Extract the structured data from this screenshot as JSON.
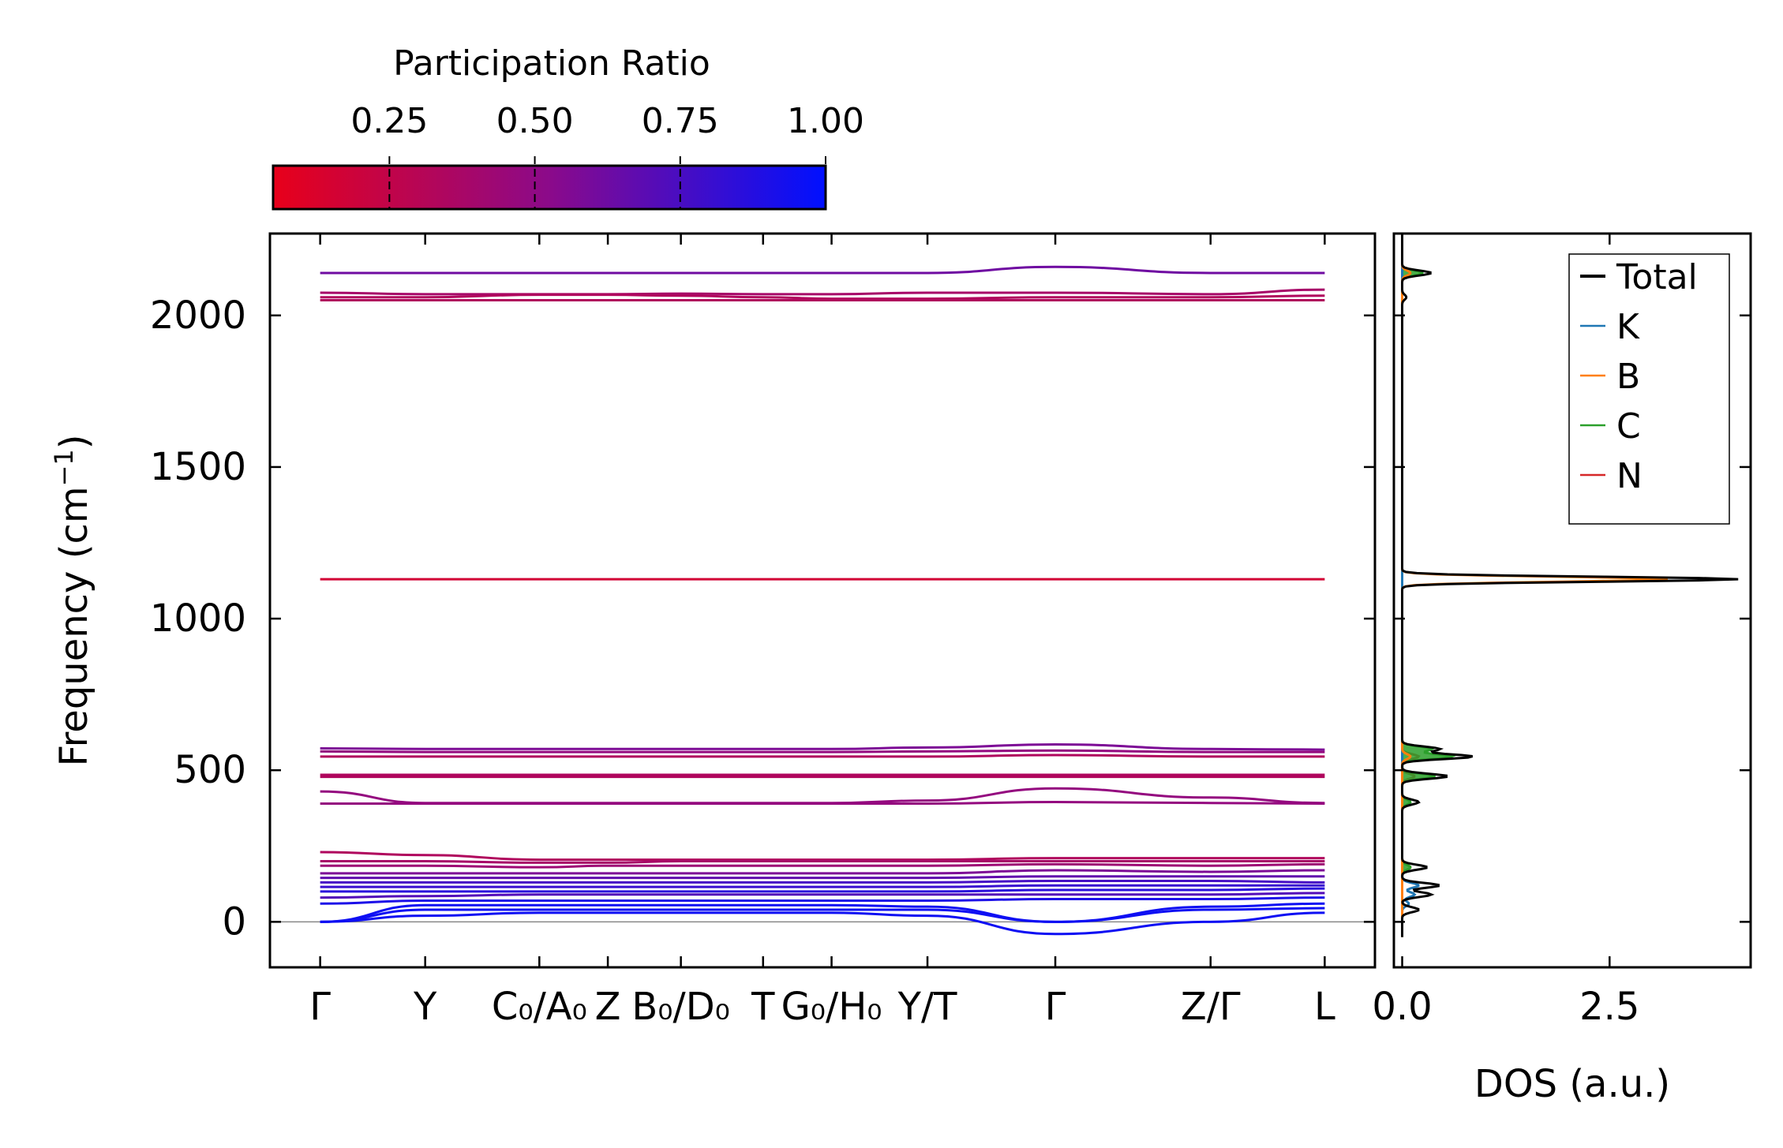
{
  "colors": {
    "cmap_low": "#e8001a",
    "cmap_mid": "#8b0a8a",
    "cmap_high": "#0010ff",
    "total": "#000000",
    "K": "#1f77b4",
    "B": "#ff7f0e",
    "C": "#2ca02c",
    "N": "#d62728"
  },
  "chart_data": [
    {
      "type": "line",
      "name": "phonon-band-structure",
      "ylabel_main": "Frequency (cm",
      "ylabel_sup": "−1",
      "ylabel_end": ")",
      "ylim": [
        -150,
        2270
      ],
      "yticks": [
        {
          "value": 0,
          "label": "0"
        },
        {
          "value": 500,
          "label": "500"
        },
        {
          "value": 1000,
          "label": "1000"
        },
        {
          "value": 1500,
          "label": "1500"
        },
        {
          "value": 2000,
          "label": "2000"
        }
      ],
      "kpath": [
        {
          "x": 0.0,
          "label": "Γ"
        },
        {
          "x": 0.115,
          "label": "Y"
        },
        {
          "x": 0.24,
          "label": "C₀/A₀"
        },
        {
          "x": 0.315,
          "label": "Z"
        },
        {
          "x": 0.395,
          "label": "B₀/D₀"
        },
        {
          "x": 0.485,
          "label": "T"
        },
        {
          "x": 0.56,
          "label": "G₀/H₀"
        },
        {
          "x": 0.665,
          "label": "Y/T"
        },
        {
          "x": 0.805,
          "label": "Γ"
        },
        {
          "x": 0.975,
          "label": "Z/Γ"
        },
        {
          "x": 1.1,
          "label": "L"
        }
      ],
      "xlim": [
        -0.055,
        1.155
      ],
      "high_bands": [
        {
          "values": [
            2140,
            2140,
            2140,
            2140,
            2140,
            2140,
            2140,
            2140,
            2160,
            2140,
            2140
          ],
          "pr": 0.6
        },
        {
          "values": [
            2075,
            2070,
            2070,
            2070,
            2072,
            2070,
            2070,
            2075,
            2075,
            2070,
            2085
          ],
          "pr": 0.35
        },
        {
          "values": [
            2060,
            2060,
            2068,
            2068,
            2065,
            2060,
            2055,
            2055,
            2060,
            2060,
            2065
          ],
          "pr": 0.3
        },
        {
          "values": [
            2050,
            2050,
            2050,
            2050,
            2050,
            2050,
            2050,
            2050,
            2050,
            2050,
            2050
          ],
          "pr": 0.3
        }
      ],
      "mid_bands": [
        {
          "values": [
            1130,
            1130,
            1130,
            1130,
            1130,
            1130,
            1130,
            1130,
            1130,
            1130,
            1130
          ],
          "pr": 0.12
        }
      ],
      "low_bands": [
        {
          "values": [
            572,
            570,
            570,
            570,
            570,
            570,
            570,
            575,
            585,
            570,
            568
          ],
          "pr": 0.55
        },
        {
          "values": [
            562,
            560,
            560,
            560,
            560,
            560,
            560,
            562,
            565,
            560,
            560
          ],
          "pr": 0.45
        },
        {
          "values": [
            545,
            545,
            545,
            545,
            545,
            545,
            545,
            545,
            550,
            545,
            545
          ],
          "pr": 0.3
        },
        {
          "values": [
            485,
            485,
            485,
            485,
            485,
            485,
            485,
            485,
            485,
            485,
            485
          ],
          "pr": 0.3
        },
        {
          "values": [
            478,
            478,
            478,
            478,
            478,
            478,
            478,
            478,
            478,
            478,
            478
          ],
          "pr": 0.3
        },
        {
          "values": [
            430,
            392,
            392,
            392,
            392,
            392,
            392,
            400,
            440,
            410,
            392
          ],
          "pr": 0.45
        },
        {
          "values": [
            390,
            390,
            390,
            390,
            390,
            390,
            390,
            390,
            395,
            392,
            390
          ],
          "pr": 0.45
        }
      ],
      "acoustic_bands": [
        {
          "values": [
            230,
            220,
            205,
            205,
            205,
            205,
            205,
            205,
            210,
            210,
            210
          ],
          "pr": 0.3
        },
        {
          "values": [
            200,
            200,
            195,
            195,
            200,
            200,
            200,
            200,
            200,
            200,
            200
          ],
          "pr": 0.35
        },
        {
          "values": [
            185,
            185,
            180,
            185,
            185,
            185,
            185,
            185,
            190,
            185,
            190
          ],
          "pr": 0.4
        },
        {
          "values": [
            160,
            160,
            160,
            160,
            160,
            160,
            160,
            160,
            170,
            165,
            170
          ],
          "pr": 0.55
        },
        {
          "values": [
            145,
            145,
            145,
            145,
            145,
            145,
            145,
            145,
            150,
            150,
            150
          ],
          "pr": 0.65
        },
        {
          "values": [
            130,
            130,
            130,
            130,
            130,
            130,
            130,
            130,
            135,
            135,
            130
          ],
          "pr": 0.75
        },
        {
          "values": [
            115,
            115,
            115,
            115,
            115,
            115,
            115,
            115,
            120,
            120,
            120
          ],
          "pr": 0.8
        },
        {
          "values": [
            100,
            100,
            100,
            100,
            100,
            100,
            100,
            100,
            105,
            105,
            110
          ],
          "pr": 0.85
        },
        {
          "values": [
            80,
            85,
            90,
            90,
            90,
            90,
            90,
            90,
            90,
            90,
            95
          ],
          "pr": 0.7
        },
        {
          "values": [
            60,
            70,
            70,
            70,
            70,
            70,
            70,
            70,
            75,
            75,
            80
          ],
          "pr": 0.9
        },
        {
          "values": [
            0,
            55,
            55,
            55,
            55,
            55,
            55,
            50,
            0,
            50,
            60
          ],
          "pr": 0.95
        },
        {
          "values": [
            0,
            40,
            40,
            40,
            40,
            40,
            40,
            40,
            0,
            40,
            45
          ],
          "pr": 0.95
        },
        {
          "values": [
            0,
            20,
            30,
            30,
            30,
            30,
            30,
            20,
            -40,
            0,
            30
          ],
          "pr": 0.95
        }
      ],
      "zero_line": 0
    },
    {
      "type": "area",
      "name": "participation-ratio-colorbar",
      "title": "Participation Ratio",
      "range": [
        0.05,
        1.0
      ],
      "ticks": [
        {
          "value": 0.25,
          "label": "0.25"
        },
        {
          "value": 0.5,
          "label": "0.50"
        },
        {
          "value": 0.75,
          "label": "0.75"
        },
        {
          "value": 1.0,
          "label": "1.00"
        }
      ]
    },
    {
      "type": "line",
      "name": "density-of-states",
      "xlabel": "DOS (a.u.)",
      "xlim": [
        -0.1,
        4.2
      ],
      "xticks": [
        {
          "value": 0.0,
          "label": "0.0"
        },
        {
          "value": 2.5,
          "label": "2.5"
        }
      ],
      "legend_position": "top-right",
      "series": [
        {
          "name": "Total",
          "key": "total",
          "peaks": [
            [
              2140,
              0.35
            ],
            [
              2060,
              0.05
            ],
            [
              1130,
              4.05
            ],
            [
              570,
              0.45
            ],
            [
              545,
              0.85
            ],
            [
              480,
              0.55
            ],
            [
              395,
              0.2
            ],
            [
              180,
              0.3
            ],
            [
              120,
              0.45
            ],
            [
              90,
              0.35
            ],
            [
              40,
              0.2
            ]
          ]
        },
        {
          "name": "K",
          "key": "K",
          "peaks": [
            [
              120,
              0.2
            ],
            [
              90,
              0.15
            ],
            [
              60,
              0.08
            ]
          ]
        },
        {
          "name": "B",
          "key": "B",
          "peaks": [
            [
              1130,
              3.2
            ],
            [
              2140,
              0.1
            ],
            [
              545,
              0.1
            ]
          ]
        },
        {
          "name": "C",
          "key": "C",
          "peaks": [
            [
              2140,
              0.25
            ],
            [
              570,
              0.35
            ],
            [
              545,
              0.6
            ],
            [
              480,
              0.4
            ],
            [
              395,
              0.1
            ],
            [
              180,
              0.1
            ]
          ]
        },
        {
          "name": "N",
          "key": "N",
          "peaks": [
            [
              2140,
              0.1
            ],
            [
              545,
              0.2
            ],
            [
              480,
              0.15
            ],
            [
              180,
              0.1
            ]
          ]
        }
      ]
    }
  ]
}
